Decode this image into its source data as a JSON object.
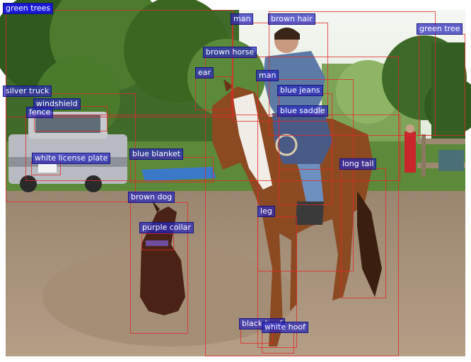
{
  "annotations": [
    {
      "key": "green-trees",
      "label": "green trees"
    },
    {
      "key": "man-top",
      "label": "man"
    },
    {
      "key": "brown-hair",
      "label": "brown hair"
    },
    {
      "key": "green-tree",
      "label": "green tree"
    },
    {
      "key": "brown-horse",
      "label": "brown horse"
    },
    {
      "key": "ear",
      "label": "ear"
    },
    {
      "key": "man",
      "label": "man"
    },
    {
      "key": "silver-truck",
      "label": "silver truck"
    },
    {
      "key": "blue-jeans",
      "label": "blue jeans"
    },
    {
      "key": "windshield",
      "label": "windshield"
    },
    {
      "key": "fence",
      "label": "fence"
    },
    {
      "key": "blue-saddle",
      "label": "blue saddle"
    },
    {
      "key": "blue-blanket",
      "label": "blue blanket"
    },
    {
      "key": "white-license-plate",
      "label": "white license plate"
    },
    {
      "key": "long-tail",
      "label": "long tail"
    },
    {
      "key": "brown-dog",
      "label": "brown dog"
    },
    {
      "key": "leg",
      "label": "leg"
    },
    {
      "key": "purple-collar",
      "label": "purple collar"
    },
    {
      "key": "black-hoof",
      "label": "black hoof"
    },
    {
      "key": "white-hoof",
      "label": "white hoof"
    }
  ],
  "colors": {
    "box_stroke": "#e02828",
    "label_fill": "#2828be",
    "label_text": "#ffffff"
  }
}
